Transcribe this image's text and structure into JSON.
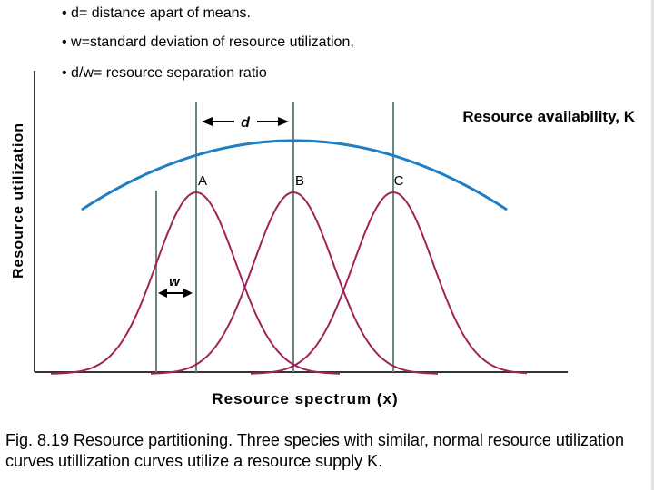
{
  "bullets": [
    "• d= distance apart of means.",
    "• w=standard deviation of resource utilization,",
    "• d/w= resource separation ratio"
  ],
  "diagram": {
    "y_axis_label": "Resource utilization",
    "x_axis_label": "Resource spectrum (x)",
    "availability_label": "Resource availability, K",
    "d_label": "d",
    "w_label": "w",
    "species_labels": [
      "A",
      "B",
      "C"
    ]
  },
  "caption": "Fig. 8.19 Resource partitioning. Three species with similar, normal resource utilization curves utillization curves utilize a resource supply K.",
  "colors": {
    "curves": "#a0245a",
    "availability": "#1f7ec4",
    "guides": "#6f8579",
    "axes": "#333333",
    "arrows": "#000000"
  }
}
